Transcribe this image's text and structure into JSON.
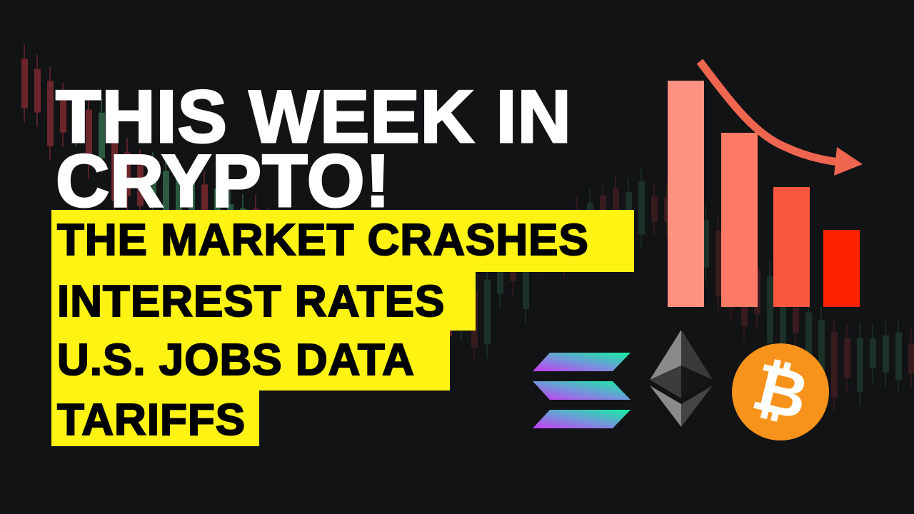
{
  "headline": {
    "line1": "THIS WEEK IN",
    "line2": "CRYPTO!"
  },
  "topics": [
    "THE MARKET CRASHES",
    "INTEREST RATES",
    "U.S. JOBS DATA",
    "TARIFFS"
  ],
  "graphic": {
    "bar_colors": [
      "#ff9180",
      "#ff7a66",
      "#f95740",
      "#ff2200"
    ],
    "bar_relative_heights": [
      1.0,
      0.77,
      0.53,
      0.34
    ],
    "arrow_color": "#ef6650",
    "icons": [
      "solana-logo-icon",
      "ethereum-logo-icon",
      "bitcoin-logo-icon"
    ],
    "bitcoin_color": "#f7931a",
    "highlight_color": "#fff314"
  }
}
